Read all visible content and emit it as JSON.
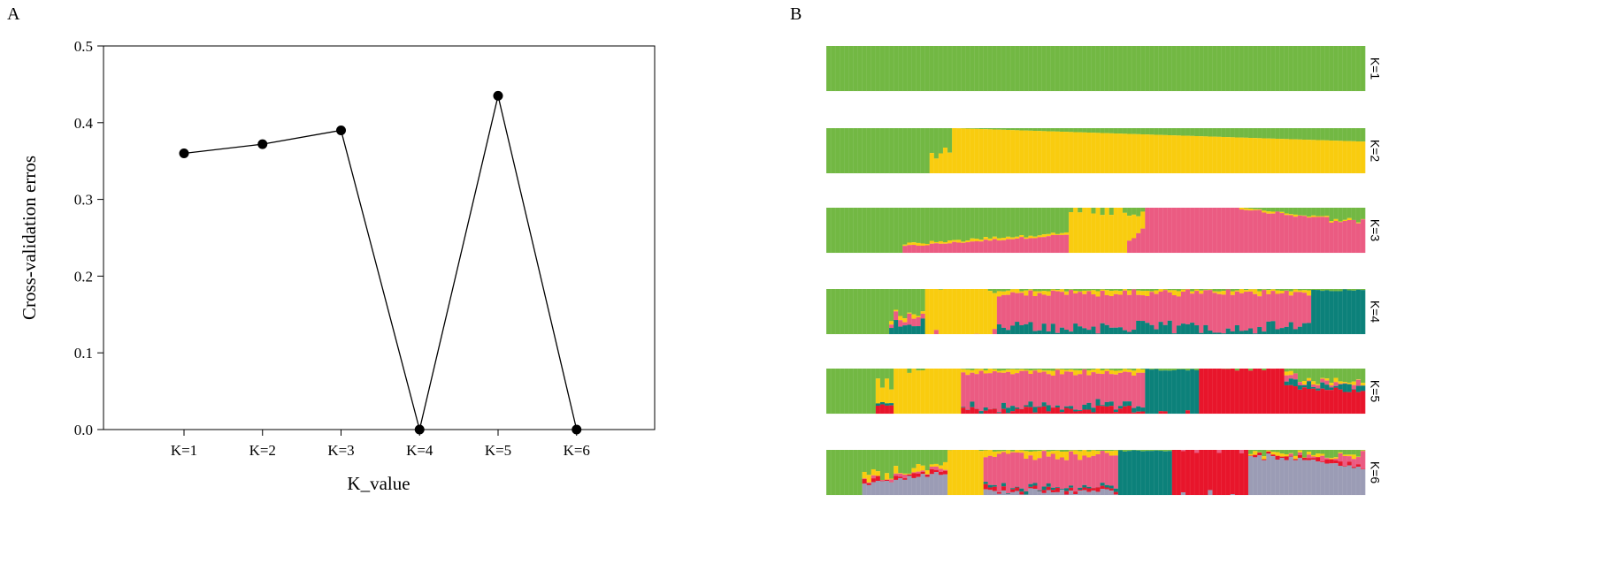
{
  "panels": {
    "a_label": "A",
    "b_label": "B"
  },
  "colors": {
    "line": "#000000",
    "cluster_1": "#72b843",
    "cluster_2": "#f9cc0f",
    "cluster_3": "#eb5b82",
    "cluster_4": "#0c817a",
    "cluster_5": "#e8152b",
    "cluster_6": "#9b9cb5"
  },
  "chart_data": [
    {
      "type": "line",
      "title": "",
      "xlabel": "K_value",
      "ylabel": "Cross-validation erros",
      "categories": [
        "K=1",
        "K=2",
        "K=3",
        "K=4",
        "K=5",
        "K=6"
      ],
      "values": [
        0.36,
        0.372,
        0.39,
        0.0,
        0.435,
        0.0
      ],
      "ylim": [
        0,
        0.5
      ],
      "yticks": [
        "0.0",
        "0.1",
        "0.2",
        "0.3",
        "0.4",
        "0.5"
      ],
      "grid": false,
      "marker": "filled-circle"
    },
    {
      "type": "stacked-bar",
      "title": "",
      "description_rows": "Admixture ancestry proportions per individual for each K",
      "individuals": 120,
      "rows": [
        {
          "label": "K=1",
          "k": 1
        },
        {
          "label": "K=2",
          "k": 2
        },
        {
          "label": "K=3",
          "k": 3
        },
        {
          "label": "K=4",
          "k": 4
        },
        {
          "label": "K=5",
          "k": 5
        },
        {
          "label": "K=6",
          "k": 6
        }
      ]
    }
  ]
}
